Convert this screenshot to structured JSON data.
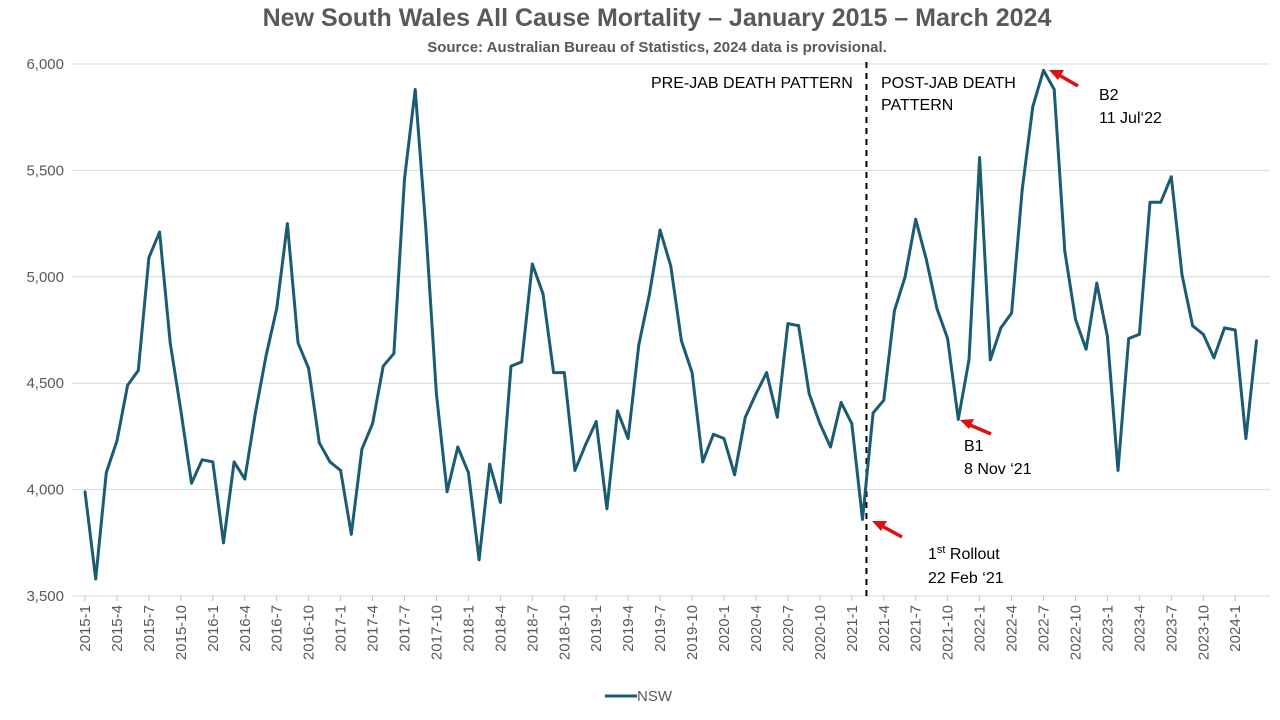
{
  "title": "New South Wales All Cause Mortality – January 2015 – March 2024",
  "subtitle": "Source: Australian Bureau of Statistics, 2024 data is provisional.",
  "colors": {
    "series": "#1b5b73",
    "arrow": "#e01010",
    "divider": "#000000",
    "grid": "#d9d9d9"
  },
  "chart_data": {
    "type": "line",
    "title": "New South Wales All Cause Mortality – January 2015 – March 2024",
    "subtitle": "Source: Australian Bureau of Statistics, 2024 data is provisional.",
    "xlabel": "",
    "ylabel": "",
    "ylim": [
      3500,
      6000
    ],
    "yticks": [
      3500,
      4000,
      4500,
      5000,
      5500,
      6000
    ],
    "ytick_labels": [
      "3,500",
      "4,000",
      "4,500",
      "5,000",
      "5,500",
      "6,000"
    ],
    "grid": "horizontal",
    "legend": "bottom",
    "x": [
      "2015-1",
      "2015-2",
      "2015-3",
      "2015-4",
      "2015-5",
      "2015-6",
      "2015-7",
      "2015-8",
      "2015-9",
      "2015-10",
      "2015-11",
      "2015-12",
      "2016-1",
      "2016-2",
      "2016-3",
      "2016-4",
      "2016-5",
      "2016-6",
      "2016-7",
      "2016-8",
      "2016-9",
      "2016-10",
      "2016-11",
      "2016-12",
      "2017-1",
      "2017-2",
      "2017-3",
      "2017-4",
      "2017-5",
      "2017-6",
      "2017-7",
      "2017-8",
      "2017-9",
      "2017-10",
      "2017-11",
      "2017-12",
      "2018-1",
      "2018-2",
      "2018-3",
      "2018-4",
      "2018-5",
      "2018-6",
      "2018-7",
      "2018-8",
      "2018-9",
      "2018-10",
      "2018-11",
      "2018-12",
      "2019-1",
      "2019-2",
      "2019-3",
      "2019-4",
      "2019-5",
      "2019-6",
      "2019-7",
      "2019-8",
      "2019-9",
      "2019-10",
      "2019-11",
      "2019-12",
      "2020-1",
      "2020-2",
      "2020-3",
      "2020-4",
      "2020-5",
      "2020-6",
      "2020-7",
      "2020-8",
      "2020-9",
      "2020-10",
      "2020-11",
      "2020-12",
      "2021-1",
      "2021-2",
      "2021-3",
      "2021-4",
      "2021-5",
      "2021-6",
      "2021-7",
      "2021-8",
      "2021-9",
      "2021-10",
      "2021-11",
      "2021-12",
      "2022-1",
      "2022-2",
      "2022-3",
      "2022-4",
      "2022-5",
      "2022-6",
      "2022-7",
      "2022-8",
      "2022-9",
      "2022-10",
      "2022-11",
      "2022-12",
      "2023-1",
      "2023-2",
      "2023-3",
      "2023-4",
      "2023-5",
      "2023-6",
      "2023-7",
      "2023-8",
      "2023-9",
      "2023-10",
      "2023-11",
      "2023-12",
      "2024-1",
      "2024-2",
      "2024-3"
    ],
    "x_tick_labels": [
      "2015-1",
      "2015-4",
      "2015-7",
      "2015-10",
      "2016-1",
      "2016-4",
      "2016-7",
      "2016-10",
      "2017-1",
      "2017-4",
      "2017-7",
      "2017-10",
      "2018-1",
      "2018-4",
      "2018-7",
      "2018-10",
      "2019-1",
      "2019-4",
      "2019-7",
      "2019-10",
      "2020-1",
      "2020-4",
      "2020-7",
      "2020-10",
      "2021-1",
      "2021-4",
      "2021-7",
      "2021-10",
      "2022-1",
      "2022-4",
      "2022-7",
      "2022-10",
      "2023-1",
      "2023-4",
      "2023-7",
      "2023-10",
      "2024-1"
    ],
    "series": [
      {
        "name": "NSW",
        "values": [
          3990,
          3580,
          4080,
          4230,
          4490,
          4560,
          5090,
          5210,
          4690,
          4370,
          4030,
          4140,
          4130,
          3750,
          4130,
          4050,
          4360,
          4630,
          4850,
          5250,
          4690,
          4570,
          4220,
          4130,
          4090,
          3790,
          4190,
          4310,
          4580,
          4640,
          5460,
          5880,
          5230,
          4450,
          3990,
          4200,
          4080,
          3670,
          4120,
          3940,
          4580,
          4600,
          5060,
          4920,
          4550,
          4550,
          4090,
          4210,
          4320,
          3910,
          4370,
          4240,
          4680,
          4920,
          5220,
          5050,
          4700,
          4550,
          4130,
          4260,
          4240,
          4070,
          4340,
          4450,
          4550,
          4340,
          4780,
          4770,
          4450,
          4310,
          4200,
          4410,
          4310,
          3860,
          4360,
          4420,
          4840,
          5000,
          5270,
          5080,
          4850,
          4710,
          4330,
          4610,
          5560,
          4610,
          4760,
          4830,
          5410,
          5800,
          5970,
          5880,
          5120,
          4800,
          4660,
          4970,
          4720,
          4090,
          4710,
          4730,
          5350,
          5350,
          5470,
          5010,
          4770,
          4730,
          4620,
          4760,
          4750,
          4240,
          4700
        ]
      }
    ],
    "divider_after": "2021-2",
    "annotations": {
      "pre": "PRE-JAB DEATH PATTERN",
      "post_line1": "POST-JAB DEATH",
      "post_line2": "PATTERN",
      "b2_line1": "B2",
      "b2_line2": "11 Jul‘22",
      "b1_line1": "B1",
      "b1_line2": "8 Nov ‘21",
      "rollout_prefix": "1",
      "rollout_sup": "st",
      "rollout_suffix": " Rollout",
      "rollout_date": "22 Feb ‘21"
    }
  },
  "legend": {
    "label": "NSW"
  }
}
